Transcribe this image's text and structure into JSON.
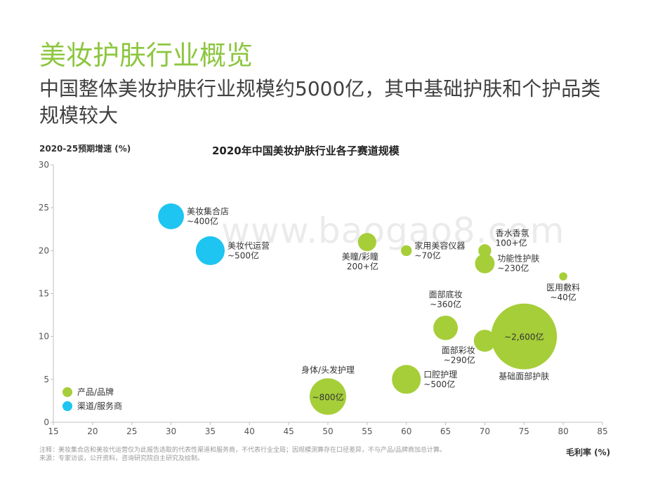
{
  "header": {
    "title": "美妆护肤行业概览",
    "subtitle": "中国整体美妆护肤行业规模约5000亿，其中基础护肤和个护品类规模较大"
  },
  "footer": {
    "note": "注释：美妆集合店和美妆代运营仅为此报告选取的代表性渠道和服务商，不代表行业全局；因规模测算存在口径差异，不与产品/品牌商加总计算。",
    "source": "来源：专家访谈，公开资料，咨询研究院自主研究及绘制。"
  },
  "watermark": "www.baogao8.com",
  "chart_data": {
    "type": "scatter",
    "title": "2020年中国美妆护肤行业各子赛道规模",
    "xlabel": "毛利率 (%)",
    "ylabel": "2020-25预期增速 (%)",
    "xlim": [
      15,
      85
    ],
    "ylim": [
      0,
      30
    ],
    "xticks": [
      15,
      20,
      25,
      30,
      35,
      40,
      45,
      50,
      55,
      60,
      65,
      70,
      75,
      80,
      85
    ],
    "yticks": [
      0,
      5,
      10,
      15,
      20,
      25,
      30
    ],
    "grid": false,
    "legend_position": "bottom-left",
    "legend": [
      {
        "label": "产品/品牌",
        "color": "#a6ce39"
      },
      {
        "label": "渠道/服务商",
        "color": "#1ec5f0"
      }
    ],
    "series": [
      {
        "name": "产品/品牌",
        "color": "#a6ce39",
        "points": [
          {
            "x": 50,
            "y": 3,
            "size": 800,
            "name": "身体/头发护理",
            "size_label": "~800亿",
            "label_pos": "top"
          },
          {
            "x": 55,
            "y": 21,
            "size": 200,
            "name": "美瞳/彩瞳",
            "size_label": "200+亿",
            "label_pos": "bottom"
          },
          {
            "x": 60,
            "y": 20,
            "size": 70,
            "name": "家用美容仪器",
            "size_label": "~70亿",
            "label_pos": "right"
          },
          {
            "x": 60,
            "y": 5,
            "size": 500,
            "name": "口腔护理",
            "size_label": "~500亿",
            "label_pos": "right"
          },
          {
            "x": 65,
            "y": 11,
            "size": 360,
            "name": "面部底妆",
            "size_label": "~360亿",
            "label_pos": "top"
          },
          {
            "x": 70,
            "y": 9.5,
            "size": 290,
            "name": "面部彩妆",
            "size_label": "~290亿",
            "label_pos": "left-bottom"
          },
          {
            "x": 70,
            "y": 20,
            "size": 100,
            "name": "香水香氛",
            "size_label": "100+亿",
            "label_pos": "right-top"
          },
          {
            "x": 70,
            "y": 18.5,
            "size": 230,
            "name": "功能性护肤",
            "size_label": "~230亿",
            "label_pos": "right"
          },
          {
            "x": 75,
            "y": 10,
            "size": 2600,
            "name": "基础面部护肤",
            "size_label": "~2,600亿",
            "label_pos": "bottom"
          },
          {
            "x": 80,
            "y": 17,
            "size": 40,
            "name": "医用敷料",
            "size_label": "~40亿",
            "label_pos": "bottom"
          }
        ]
      },
      {
        "name": "渠道/服务商",
        "color": "#1ec5f0",
        "points": [
          {
            "x": 30,
            "y": 24,
            "size": 400,
            "name": "美妆集合店",
            "size_label": "~400亿",
            "label_pos": "right"
          },
          {
            "x": 35,
            "y": 20,
            "size": 500,
            "name": "美妆代运营",
            "size_label": "~500亿",
            "label_pos": "right"
          }
        ]
      }
    ]
  }
}
